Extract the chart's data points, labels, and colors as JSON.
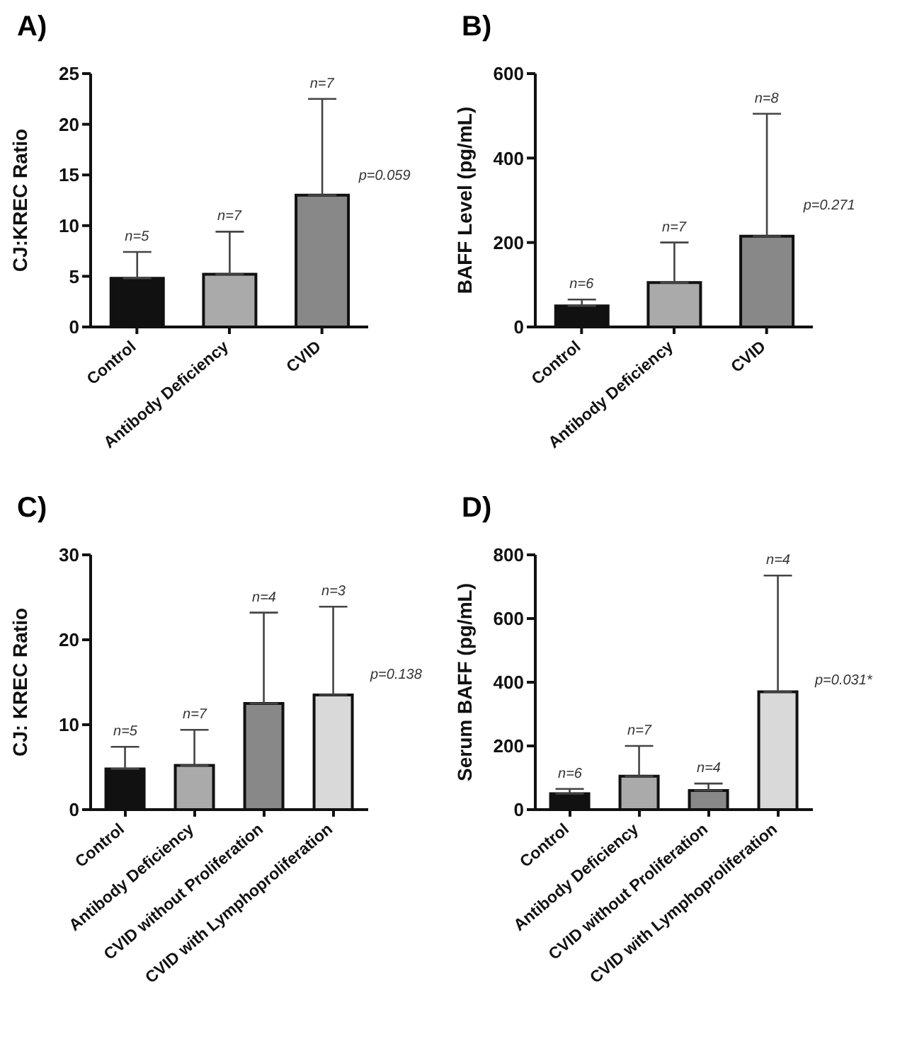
{
  "chart_data": [
    {
      "type": "bar",
      "title": "A)",
      "ylabel": "CJ:KREC Ratio",
      "categories": [
        "Control",
        "Antibody Deficiency",
        "CVID"
      ],
      "values": [
        4.8,
        5.2,
        13.0
      ],
      "colors": [
        "#111111",
        "#aaaaaa",
        "#888888"
      ],
      "errors": [
        [
          4.8,
          7.4
        ],
        [
          5.2,
          9.4
        ],
        [
          13.0,
          22.5
        ]
      ],
      "ylim": [
        0,
        25
      ],
      "yticks": [
        0,
        5,
        10,
        15,
        20,
        25
      ],
      "grid": false,
      "legend": false,
      "annotations": [
        {
          "text": "n=5",
          "x": "Control",
          "y": 7.4
        },
        {
          "text": "n=7",
          "x": "Antibody Deficiency",
          "y": 9.4
        },
        {
          "text": "n=7",
          "x": "CVID",
          "y": 22.5
        },
        {
          "text": "p=0.059",
          "x": "CVID",
          "y": 15
        }
      ]
    },
    {
      "type": "bar",
      "title": "B)",
      "ylabel": "BAFF Level (pg/mL)",
      "categories": [
        "Control",
        "Antibody Deficiency",
        "CVID"
      ],
      "values": [
        50,
        105,
        215
      ],
      "colors": [
        "#111111",
        "#aaaaaa",
        "#888888"
      ],
      "errors": [
        [
          50,
          65
        ],
        [
          105,
          200
        ],
        [
          215,
          505
        ]
      ],
      "ylim": [
        0,
        600
      ],
      "yticks": [
        0,
        200,
        400,
        600
      ],
      "grid": false,
      "legend": false,
      "annotations": [
        {
          "text": "n=6",
          "x": "Control",
          "y": 65
        },
        {
          "text": "n=7",
          "x": "Antibody Deficiency",
          "y": 200
        },
        {
          "text": "n=8",
          "x": "CVID",
          "y": 505
        },
        {
          "text": "p=0.271",
          "x": "CVID",
          "y": 290
        }
      ]
    },
    {
      "type": "bar",
      "title": "C)",
      "ylabel": "CJ: KREC Ratio",
      "categories": [
        "Control",
        "Antibody Deficiency",
        "CVID without Proliferation",
        "CVID with Lymphoproliferation"
      ],
      "values": [
        4.8,
        5.2,
        12.5,
        13.5
      ],
      "colors": [
        "#111111",
        "#aaaaaa",
        "#888888",
        "#d9d9d9"
      ],
      "errors": [
        [
          4.8,
          7.4
        ],
        [
          5.2,
          9.4
        ],
        [
          12.5,
          23.2
        ],
        [
          13.5,
          23.9
        ]
      ],
      "ylim": [
        0,
        30
      ],
      "yticks": [
        0,
        10,
        20,
        30
      ],
      "grid": false,
      "legend": false,
      "annotations": [
        {
          "text": "n=5",
          "x": "Control",
          "y": 7.4
        },
        {
          "text": "n=7",
          "x": "Antibody Deficiency",
          "y": 9.4
        },
        {
          "text": "n=4",
          "x": "CVID without Proliferation",
          "y": 23.2
        },
        {
          "text": "n=3",
          "x": "CVID with Lymphoproliferation",
          "y": 23.9
        },
        {
          "text": "p=0.138",
          "x": "CVID with Lymphoproliferation",
          "y": 16
        }
      ]
    },
    {
      "type": "bar",
      "title": "D)",
      "ylabel": "Serum BAFF (pg/mL)",
      "categories": [
        "Control",
        "Antibody Deficiency",
        "CVID without Proliferation",
        "CVID with Lymphoproliferation"
      ],
      "values": [
        50,
        105,
        60,
        370
      ],
      "colors": [
        "#111111",
        "#aaaaaa",
        "#888888",
        "#d9d9d9"
      ],
      "errors": [
        [
          50,
          65
        ],
        [
          105,
          200
        ],
        [
          60,
          82
        ],
        [
          370,
          735
        ]
      ],
      "ylim": [
        0,
        800
      ],
      "yticks": [
        0,
        200,
        400,
        600,
        800
      ],
      "grid": false,
      "legend": false,
      "annotations": [
        {
          "text": "n=6",
          "x": "Control",
          "y": 65
        },
        {
          "text": "n=7",
          "x": "Antibody Deficiency",
          "y": 200
        },
        {
          "text": "n=4",
          "x": "CVID without Proliferation",
          "y": 82
        },
        {
          "text": "n=4",
          "x": "CVID with Lymphoproliferation",
          "y": 735
        },
        {
          "text": "p=0.031*",
          "x": "CVID with Lymphoproliferation",
          "y": 410
        }
      ]
    }
  ]
}
